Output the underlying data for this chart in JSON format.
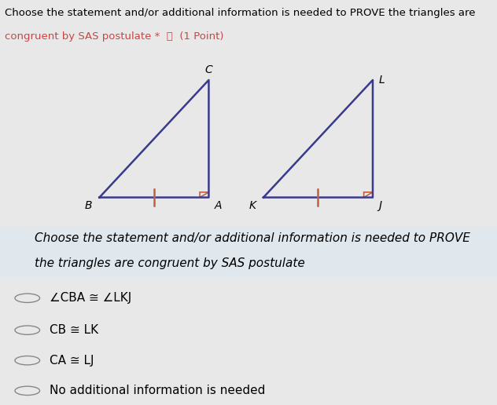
{
  "title_line1": "Choose the statement and/or additional information is needed to PROVE the triangles are",
  "title_line2": "congruent by SAS postulate ★  ⧉  (1 Point)",
  "title_top_text": "Choose the statement and/or additional information is needed to PROVE the triangles are\ncongruent by SAS postulate *  ⧉  (1 Point)",
  "diagram_bg": "#d8e8f0",
  "outer_bg": "#e8e8e8",
  "tri_color": "#3a3a8c",
  "tick_color": "#c06040",
  "right_angle_color": "#c06040",
  "subtitle": "Choose the statement and/or additional information is needed to PROVE\nthe triangles are congruent by SAS postulate",
  "options": [
    "∠CBA ≅ ∠LKJ",
    "CB ≅ LK",
    "CA ≅ LJ",
    "No additional information is needed"
  ],
  "title_fontsize": 9.5,
  "subtitle_fontsize": 11,
  "label_fontsize": 10,
  "option_fontsize": 11,
  "bg_top_color": "#d8d8d8",
  "bg_bottom_color": "#d0d0d0",
  "diagram_panel_color": "#ccdce8"
}
